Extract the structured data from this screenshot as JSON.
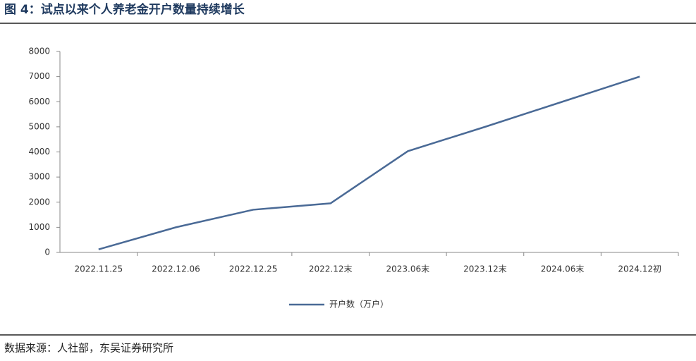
{
  "chart_data": {
    "type": "line",
    "title": "图 4：试点以来个人养老金开户数量持续增长",
    "source": "数据来源：人社部，东吴证券研究所",
    "categories": [
      "2022.11.25",
      "2022.12.06",
      "2022.12.25",
      "2022.12末",
      "2023.06末",
      "2023.12末",
      "2024.06末",
      "2024.12初"
    ],
    "series": [
      {
        "name": "开户数（万户）",
        "color": "#4a6a96",
        "values": [
          120,
          1000,
          1700,
          1954,
          4030,
          5000,
          6000,
          7000
        ]
      }
    ],
    "ylim": [
      0,
      8000
    ],
    "yticks": [
      0,
      1000,
      2000,
      3000,
      4000,
      5000,
      6000,
      7000,
      8000
    ],
    "grid": false,
    "legend": "bottom"
  }
}
